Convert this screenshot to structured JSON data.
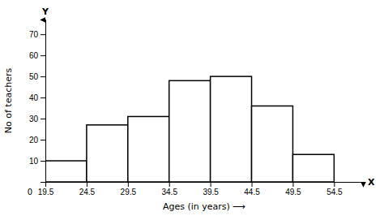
{
  "chart_data": {
    "type": "histogram",
    "bins": [
      19.5,
      24.5,
      29.5,
      34.5,
      39.5,
      44.5,
      49.5,
      54.5
    ],
    "values": [
      10,
      27,
      31,
      48,
      50,
      36,
      13
    ],
    "color": "#ffffff",
    "xlabel": "Ages (in years) ⟶",
    "ylabel": "No of teachers",
    "annotations": [
      "X",
      "Y",
      "0"
    ],
    "xlim": [
      19.5,
      58
    ],
    "ylim": [
      0,
      77
    ],
    "xticks": [
      19.5,
      24.5,
      29.5,
      34.5,
      39.5,
      44.5,
      49.5,
      54.5
    ],
    "yticks": [
      10,
      20,
      30,
      40,
      50,
      60,
      70
    ]
  }
}
